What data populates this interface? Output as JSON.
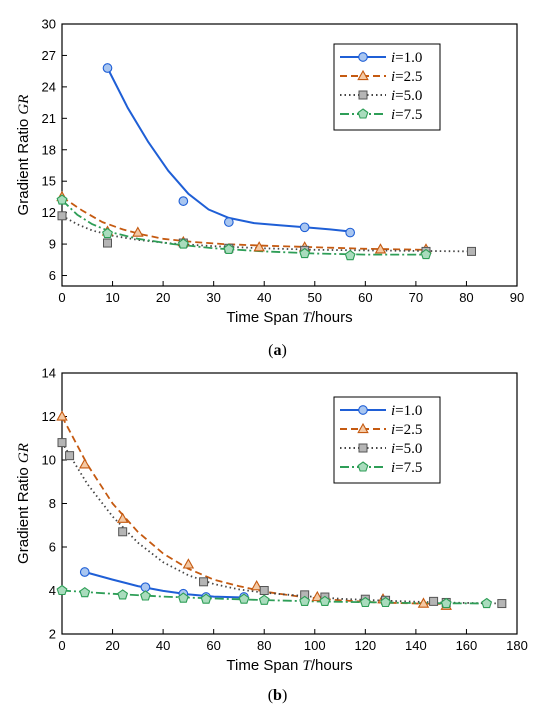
{
  "chart_data": [
    {
      "type": "line",
      "panel_label": "(a)",
      "xlabel": "Time Span T/hours",
      "ylabel": "Gradient Ratio GR",
      "xlim": [
        0,
        90
      ],
      "ylim": [
        5,
        30
      ],
      "xticks": [
        0,
        10,
        20,
        30,
        40,
        50,
        60,
        70,
        80,
        90
      ],
      "yticks": [
        6,
        9,
        12,
        15,
        18,
        21,
        24,
        27,
        30
      ],
      "grid": false,
      "legend_position": "top-right",
      "series": [
        {
          "name": "i=1.0",
          "color": "#1f5fd6",
          "line_style": "solid",
          "marker": "circle",
          "points": [
            [
              9,
              25.8
            ],
            [
              24,
              13.1
            ],
            [
              33,
              11.1
            ],
            [
              48,
              10.6
            ],
            [
              57,
              10.1
            ]
          ],
          "curve": [
            [
              9,
              25.8
            ],
            [
              13,
              22.0
            ],
            [
              17,
              18.8
            ],
            [
              21,
              16.0
            ],
            [
              25,
              13.8
            ],
            [
              29,
              12.3
            ],
            [
              33,
              11.5
            ],
            [
              38,
              11.0
            ],
            [
              43,
              10.8
            ],
            [
              48,
              10.6
            ],
            [
              53,
              10.4
            ],
            [
              57,
              10.2
            ]
          ]
        },
        {
          "name": "i=2.5",
          "color": "#c55a11",
          "line_style": "dashed",
          "marker": "triangle",
          "points": [
            [
              0,
              13.5
            ],
            [
              9,
              10.2
            ],
            [
              15,
              10.1
            ],
            [
              24,
              9.2
            ],
            [
              39,
              8.7
            ],
            [
              48,
              8.7
            ],
            [
              63,
              8.5
            ],
            [
              72,
              8.5
            ]
          ],
          "curve": [
            [
              0,
              13.5
            ],
            [
              4,
              12.2
            ],
            [
              8,
              11.1
            ],
            [
              12,
              10.4
            ],
            [
              16,
              9.9
            ],
            [
              20,
              9.5
            ],
            [
              26,
              9.2
            ],
            [
              32,
              9.0
            ],
            [
              40,
              8.85
            ],
            [
              50,
              8.7
            ],
            [
              60,
              8.55
            ],
            [
              72,
              8.45
            ]
          ]
        },
        {
          "name": "i=5.0",
          "color": "#444444",
          "line_style": "dotted",
          "marker": "square",
          "points": [
            [
              0,
              11.7
            ],
            [
              9,
              9.1
            ],
            [
              24,
              9.1
            ],
            [
              33,
              8.6
            ],
            [
              48,
              8.4
            ],
            [
              72,
              8.3
            ],
            [
              81,
              8.3
            ]
          ],
          "curve": [
            [
              0,
              11.7
            ],
            [
              3,
              10.9
            ],
            [
              6,
              10.3
            ],
            [
              10,
              9.8
            ],
            [
              15,
              9.4
            ],
            [
              22,
              9.05
            ],
            [
              30,
              8.8
            ],
            [
              40,
              8.6
            ],
            [
              50,
              8.45
            ],
            [
              60,
              8.4
            ],
            [
              70,
              8.35
            ],
            [
              81,
              8.3
            ]
          ]
        },
        {
          "name": "i=7.5",
          "color": "#2e9e57",
          "line_style": "dashdot",
          "marker": "pentagon",
          "points": [
            [
              0,
              13.2
            ],
            [
              9,
              10.0
            ],
            [
              24,
              9.0
            ],
            [
              33,
              8.5
            ],
            [
              48,
              8.1
            ],
            [
              57,
              7.9
            ],
            [
              72,
              8.0
            ]
          ],
          "curve": [
            [
              0,
              13.2
            ],
            [
              3,
              11.8
            ],
            [
              6,
              10.9
            ],
            [
              10,
              10.1
            ],
            [
              15,
              9.5
            ],
            [
              22,
              9.0
            ],
            [
              30,
              8.6
            ],
            [
              40,
              8.3
            ],
            [
              50,
              8.1
            ],
            [
              60,
              8.0
            ],
            [
              72,
              8.0
            ]
          ]
        }
      ]
    },
    {
      "type": "line",
      "panel_label": "(b)",
      "xlabel": "Time Span T/hours",
      "ylabel": "Gradient Ratio GR",
      "xlim": [
        0,
        180
      ],
      "ylim": [
        2,
        14
      ],
      "xticks": [
        0,
        20,
        40,
        60,
        80,
        100,
        120,
        140,
        160,
        180
      ],
      "yticks": [
        2,
        4,
        6,
        8,
        10,
        12,
        14
      ],
      "grid": false,
      "legend_position": "top-right",
      "series": [
        {
          "name": "i=1.0",
          "color": "#1f5fd6",
          "line_style": "solid",
          "marker": "circle",
          "points": [
            [
              9,
              4.85
            ],
            [
              33,
              4.15
            ],
            [
              48,
              3.85
            ],
            [
              57,
              3.7
            ],
            [
              72,
              3.7
            ]
          ],
          "curve": [
            [
              9,
              4.85
            ],
            [
              20,
              4.5
            ],
            [
              30,
              4.2
            ],
            [
              40,
              3.98
            ],
            [
              50,
              3.82
            ],
            [
              60,
              3.72
            ],
            [
              72,
              3.68
            ]
          ]
        },
        {
          "name": "i=2.5",
          "color": "#c55a11",
          "line_style": "dashed",
          "marker": "triangle",
          "points": [
            [
              0,
              12.0
            ],
            [
              9,
              9.8
            ],
            [
              24,
              7.3
            ],
            [
              50,
              5.2
            ],
            [
              77,
              4.2
            ],
            [
              101,
              3.7
            ],
            [
              127,
              3.6
            ],
            [
              143,
              3.4
            ],
            [
              152,
              3.3
            ]
          ],
          "curve": [
            [
              0,
              12.0
            ],
            [
              10,
              9.8
            ],
            [
              20,
              8.0
            ],
            [
              30,
              6.7
            ],
            [
              40,
              5.7
            ],
            [
              50,
              5.0
            ],
            [
              60,
              4.5
            ],
            [
              70,
              4.2
            ],
            [
              80,
              3.95
            ],
            [
              95,
              3.7
            ],
            [
              110,
              3.55
            ],
            [
              125,
              3.45
            ],
            [
              140,
              3.4
            ],
            [
              152,
              3.38
            ]
          ]
        },
        {
          "name": "i=5.0",
          "color": "#444444",
          "line_style": "dotted",
          "marker": "square",
          "points": [
            [
              0,
              10.8
            ],
            [
              3,
              10.2
            ],
            [
              24,
              6.7
            ],
            [
              56,
              4.4
            ],
            [
              80,
              4.0
            ],
            [
              96,
              3.8
            ],
            [
              104,
              3.7
            ],
            [
              120,
              3.6
            ],
            [
              128,
              3.55
            ],
            [
              147,
              3.5
            ],
            [
              152,
              3.45
            ],
            [
              174,
              3.4
            ]
          ],
          "curve": [
            [
              0,
              10.8
            ],
            [
              10,
              8.9
            ],
            [
              20,
              7.4
            ],
            [
              30,
              6.2
            ],
            [
              40,
              5.3
            ],
            [
              50,
              4.7
            ],
            [
              60,
              4.3
            ],
            [
              70,
              4.05
            ],
            [
              80,
              3.9
            ],
            [
              95,
              3.75
            ],
            [
              110,
              3.62
            ],
            [
              130,
              3.52
            ],
            [
              150,
              3.45
            ],
            [
              174,
              3.4
            ]
          ]
        },
        {
          "name": "i=7.5",
          "color": "#2e9e57",
          "line_style": "dashdot",
          "marker": "pentagon",
          "points": [
            [
              0,
              4.0
            ],
            [
              9,
              3.9
            ],
            [
              24,
              3.8
            ],
            [
              33,
              3.75
            ],
            [
              48,
              3.65
            ],
            [
              57,
              3.6
            ],
            [
              72,
              3.6
            ],
            [
              80,
              3.55
            ],
            [
              96,
              3.5
            ],
            [
              104,
              3.5
            ],
            [
              120,
              3.45
            ],
            [
              128,
              3.45
            ],
            [
              152,
              3.4
            ],
            [
              168,
              3.4
            ]
          ],
          "curve": [
            [
              0,
              4.0
            ],
            [
              20,
              3.85
            ],
            [
              40,
              3.72
            ],
            [
              60,
              3.63
            ],
            [
              80,
              3.56
            ],
            [
              100,
              3.5
            ],
            [
              120,
              3.46
            ],
            [
              140,
              3.42
            ],
            [
              168,
              3.4
            ]
          ]
        }
      ]
    }
  ]
}
